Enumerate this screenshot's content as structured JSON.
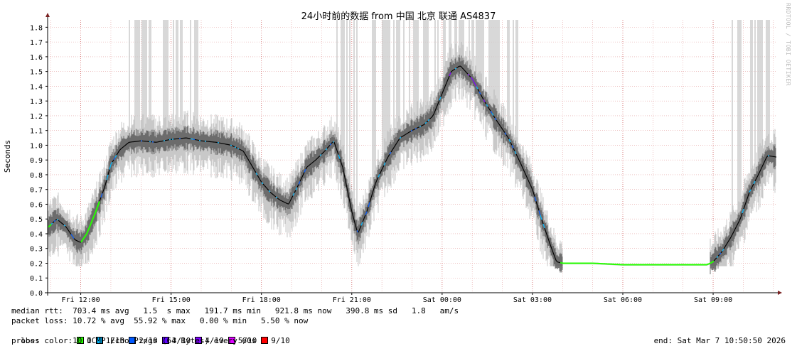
{
  "chart_data": {
    "type": "line",
    "title": "24小时前的数据 from 中国 北京 联通 AS4837",
    "ylabel": "Seconds",
    "xlabel": "",
    "ylim": [
      0,
      1.85
    ],
    "y_ticks": [
      "0.0",
      "0.1",
      "0.2",
      "0.3",
      "0.4",
      "0.5",
      "0.6",
      "0.7",
      "0.8",
      "0.9",
      "1.0",
      "1.1",
      "1.2",
      "1.3",
      "1.4",
      "1.5",
      "1.6",
      "1.7",
      "1.8"
    ],
    "x_ticks": [
      "Fri 12:00",
      "Fri 15:00",
      "Fri 18:00",
      "Fri 21:00",
      "Sat 00:00",
      "Sat 03:00",
      "Sat 06:00",
      "Sat 09:00"
    ],
    "x_range_hours": [
      10.9,
      35.1
    ],
    "grid": true,
    "median_points": [
      [
        10.9,
        0.44
      ],
      [
        11.2,
        0.5
      ],
      [
        11.5,
        0.45
      ],
      [
        11.8,
        0.36
      ],
      [
        12.0,
        0.34
      ],
      [
        12.2,
        0.4
      ],
      [
        12.5,
        0.55
      ],
      [
        12.8,
        0.72
      ],
      [
        13.0,
        0.87
      ],
      [
        13.3,
        0.97
      ],
      [
        13.6,
        1.02
      ],
      [
        14.0,
        1.03
      ],
      [
        14.5,
        1.02
      ],
      [
        15.0,
        1.04
      ],
      [
        15.5,
        1.05
      ],
      [
        16.0,
        1.03
      ],
      [
        16.5,
        1.02
      ],
      [
        17.0,
        1.0
      ],
      [
        17.4,
        0.96
      ],
      [
        17.8,
        0.82
      ],
      [
        18.0,
        0.75
      ],
      [
        18.3,
        0.68
      ],
      [
        18.6,
        0.63
      ],
      [
        18.9,
        0.6
      ],
      [
        19.2,
        0.72
      ],
      [
        19.5,
        0.85
      ],
      [
        19.8,
        0.9
      ],
      [
        20.1,
        0.96
      ],
      [
        20.4,
        1.03
      ],
      [
        20.7,
        0.85
      ],
      [
        21.0,
        0.55
      ],
      [
        21.2,
        0.4
      ],
      [
        21.5,
        0.55
      ],
      [
        21.8,
        0.75
      ],
      [
        22.2,
        0.92
      ],
      [
        22.6,
        1.05
      ],
      [
        23.0,
        1.1
      ],
      [
        23.4,
        1.14
      ],
      [
        23.7,
        1.2
      ],
      [
        24.0,
        1.35
      ],
      [
        24.3,
        1.5
      ],
      [
        24.6,
        1.54
      ],
      [
        25.0,
        1.45
      ],
      [
        25.4,
        1.3
      ],
      [
        25.8,
        1.17
      ],
      [
        26.2,
        1.05
      ],
      [
        26.6,
        0.88
      ],
      [
        27.0,
        0.7
      ],
      [
        27.3,
        0.5
      ],
      [
        27.6,
        0.32
      ],
      [
        27.8,
        0.21
      ],
      [
        28.0,
        0.2
      ],
      [
        29.0,
        0.2
      ],
      [
        30.0,
        0.19
      ],
      [
        31.0,
        0.19
      ],
      [
        32.0,
        0.19
      ],
      [
        32.8,
        0.19
      ],
      [
        33.0,
        0.21
      ],
      [
        33.3,
        0.28
      ],
      [
        33.6,
        0.38
      ],
      [
        33.9,
        0.5
      ],
      [
        34.2,
        0.68
      ],
      [
        34.5,
        0.8
      ],
      [
        34.8,
        0.93
      ],
      [
        35.1,
        0.92
      ]
    ],
    "loss_colors": [
      {
        "label": "0",
        "color": "#26ff00"
      },
      {
        "label": "1/10",
        "color": "#00b8ff"
      },
      {
        "label": "2/10",
        "color": "#0059ff"
      },
      {
        "label": "3/10",
        "color": "#5e00ff"
      },
      {
        "label": "4/10",
        "color": "#7e00ff"
      },
      {
        "label": "5/10",
        "color": "#dd00ff"
      },
      {
        "label": "9/10",
        "color": "#ff0000"
      }
    ]
  },
  "watermark": "RRDTOOL / TOBI OETIKER",
  "stats": {
    "median_rtt": "median rtt:  703.4 ms avg   1.5  s max   191.7 ms min   921.8 ms now   390.8 ms sd   1.8   am/s",
    "packet_loss": "packet loss: 10.72 % avg  55.92 % max   0.00 % min   5.50 % now",
    "loss_color_label": "loss color:",
    "probe": "probe:       10 ICMP Echo Pings (64 Bytes) every 60s",
    "end": "end: Sat Mar  7 10:50:50 2026"
  },
  "colors": {
    "grid": "#e4a0a0",
    "axis": "#000000",
    "arrow": "#7a2020",
    "smoke": "#c8c8c8",
    "smoke_dark": "#555555"
  }
}
